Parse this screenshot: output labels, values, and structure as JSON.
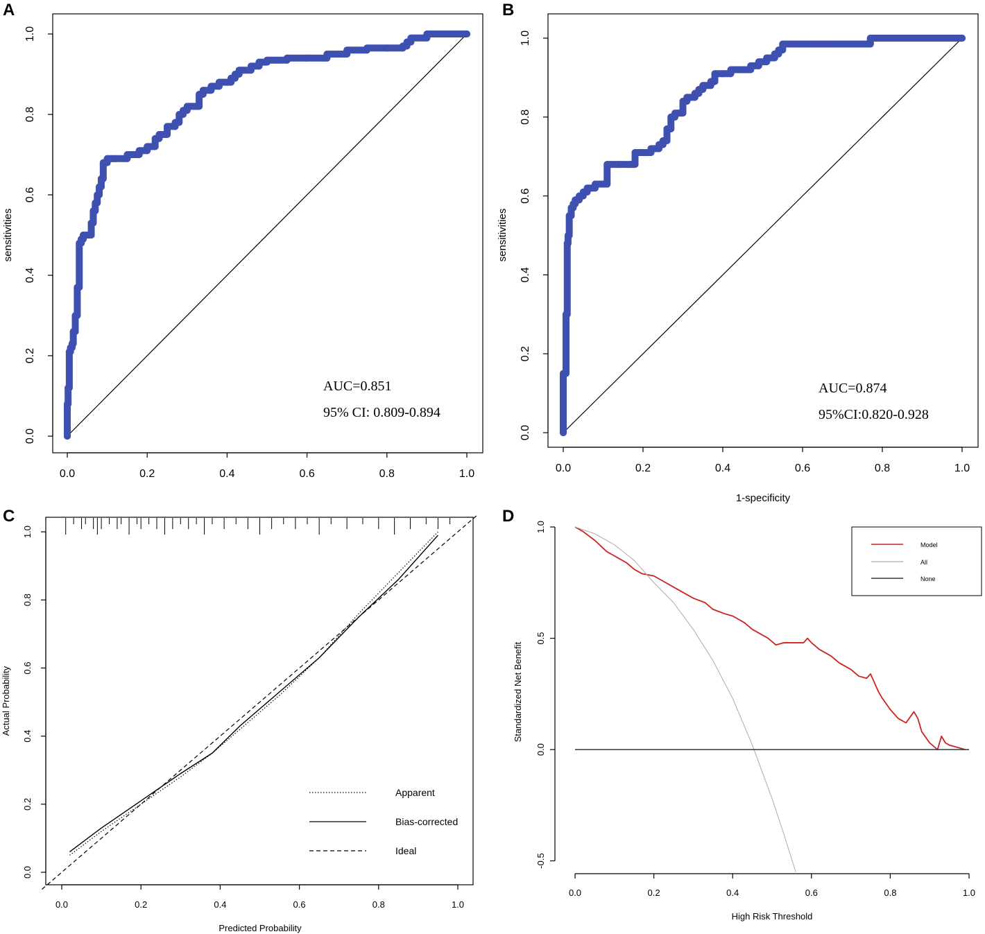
{
  "colors": {
    "roc": "#3f51b0",
    "model": "#cc2222",
    "all": "#aaaaaa",
    "none": "#333333",
    "ink": "#000000"
  },
  "chart_data": [
    {
      "panel": "A",
      "type": "line",
      "title": "",
      "xlabel": "",
      "ylabel": "sensitivities",
      "xlim": [
        0,
        1
      ],
      "ylim": [
        0,
        1
      ],
      "xticks": [
        "0.0",
        "0.2",
        "0.4",
        "0.6",
        "0.8",
        "1.0"
      ],
      "yticks": [
        "0.0",
        "0.2",
        "0.4",
        "0.6",
        "0.8",
        "1.0"
      ],
      "series": [
        {
          "name": "ROC",
          "color": "#3f51b0",
          "x": [
            0,
            0,
            0.002,
            0.005,
            0.008,
            0.012,
            0.015,
            0.02,
            0.025,
            0.03,
            0.035,
            0.04,
            0.05,
            0.06,
            0.065,
            0.07,
            0.075,
            0.08,
            0.085,
            0.09,
            0.1,
            0.11,
            0.12,
            0.15,
            0.18,
            0.2,
            0.21,
            0.22,
            0.23,
            0.25,
            0.27,
            0.28,
            0.29,
            0.3,
            0.32,
            0.33,
            0.34,
            0.36,
            0.38,
            0.4,
            0.41,
            0.42,
            0.43,
            0.44,
            0.46,
            0.48,
            0.5,
            0.55,
            0.6,
            0.65,
            0.7,
            0.75,
            0.8,
            0.84,
            0.85,
            0.86,
            0.9,
            1.0
          ],
          "y": [
            0,
            0.08,
            0.12,
            0.21,
            0.22,
            0.23,
            0.26,
            0.3,
            0.37,
            0.48,
            0.49,
            0.5,
            0.5,
            0.53,
            0.56,
            0.58,
            0.6,
            0.62,
            0.64,
            0.68,
            0.69,
            0.69,
            0.69,
            0.7,
            0.71,
            0.72,
            0.72,
            0.74,
            0.75,
            0.77,
            0.78,
            0.8,
            0.81,
            0.82,
            0.82,
            0.85,
            0.86,
            0.87,
            0.88,
            0.88,
            0.89,
            0.9,
            0.91,
            0.91,
            0.92,
            0.93,
            0.935,
            0.94,
            0.94,
            0.95,
            0.96,
            0.965,
            0.965,
            0.97,
            0.98,
            0.99,
            1.0,
            1.0
          ]
        },
        {
          "name": "Reference",
          "color": "#000000",
          "x": [
            0,
            1
          ],
          "y": [
            0,
            1
          ]
        }
      ],
      "annotations": [
        "AUC=0.851",
        "95% CI: 0.809-0.894"
      ]
    },
    {
      "panel": "B",
      "type": "line",
      "title": "",
      "xlabel": "1-specificity",
      "ylabel": "sensitivities",
      "xlim": [
        0,
        1
      ],
      "ylim": [
        0,
        1
      ],
      "xticks": [
        "0.0",
        "0.2",
        "0.4",
        "0.6",
        "0.8",
        "1.0"
      ],
      "yticks": [
        "0.0",
        "0.2",
        "0.4",
        "0.6",
        "0.8",
        "1.0"
      ],
      "series": [
        {
          "name": "ROC",
          "color": "#3f51b0",
          "x": [
            0,
            0,
            0.005,
            0.007,
            0.01,
            0.012,
            0.015,
            0.02,
            0.025,
            0.03,
            0.04,
            0.05,
            0.06,
            0.07,
            0.08,
            0.1,
            0.11,
            0.14,
            0.17,
            0.18,
            0.2,
            0.22,
            0.23,
            0.24,
            0.25,
            0.26,
            0.27,
            0.28,
            0.29,
            0.3,
            0.31,
            0.32,
            0.33,
            0.34,
            0.35,
            0.37,
            0.38,
            0.4,
            0.42,
            0.45,
            0.47,
            0.49,
            0.51,
            0.53,
            0.54,
            0.55,
            0.6,
            0.7,
            0.76,
            0.77,
            1.0
          ],
          "y": [
            0,
            0.15,
            0.15,
            0.3,
            0.48,
            0.5,
            0.55,
            0.57,
            0.58,
            0.59,
            0.6,
            0.61,
            0.62,
            0.62,
            0.63,
            0.63,
            0.68,
            0.68,
            0.68,
            0.71,
            0.71,
            0.72,
            0.72,
            0.73,
            0.74,
            0.77,
            0.8,
            0.81,
            0.81,
            0.84,
            0.85,
            0.85,
            0.86,
            0.87,
            0.88,
            0.89,
            0.91,
            0.91,
            0.92,
            0.92,
            0.93,
            0.94,
            0.95,
            0.96,
            0.97,
            0.985,
            0.985,
            0.985,
            0.985,
            1.0,
            1.0
          ]
        },
        {
          "name": "Reference",
          "color": "#000000",
          "x": [
            0,
            1
          ],
          "y": [
            0,
            1
          ]
        }
      ],
      "annotations": [
        "AUC=0.874",
        "95%CI:0.820-0.928"
      ]
    },
    {
      "panel": "C",
      "type": "line",
      "title": "",
      "xlabel": "Predicted Probability",
      "ylabel": "Actual Probability",
      "xlim": [
        0,
        1
      ],
      "ylim": [
        0,
        1
      ],
      "xticks": [
        "0.0",
        "0.2",
        "0.4",
        "0.6",
        "0.8",
        "1.0"
      ],
      "yticks": [
        "0.0",
        "0.2",
        "0.4",
        "0.6",
        "0.8",
        "1.0"
      ],
      "series": [
        {
          "name": "Apparent",
          "style": "dotted",
          "x": [
            0.02,
            0.1,
            0.2,
            0.3,
            0.38,
            0.45,
            0.55,
            0.65,
            0.75,
            0.85,
            0.95
          ],
          "y": [
            0.05,
            0.12,
            0.2,
            0.28,
            0.35,
            0.42,
            0.52,
            0.63,
            0.76,
            0.88,
            1.0
          ]
        },
        {
          "name": "Bias-corrected",
          "style": "solid",
          "x": [
            0.02,
            0.1,
            0.2,
            0.3,
            0.38,
            0.45,
            0.55,
            0.65,
            0.75,
            0.85,
            0.95
          ],
          "y": [
            0.06,
            0.13,
            0.21,
            0.29,
            0.35,
            0.43,
            0.53,
            0.63,
            0.75,
            0.86,
            0.99
          ]
        },
        {
          "name": "Ideal",
          "style": "dashed",
          "x": [
            -0.05,
            1.05
          ],
          "y": [
            -0.05,
            1.05
          ]
        }
      ],
      "rug": [
        0.01,
        0.03,
        0.05,
        0.06,
        0.08,
        0.09,
        0.1,
        0.12,
        0.14,
        0.15,
        0.17,
        0.19,
        0.2,
        0.22,
        0.24,
        0.26,
        0.28,
        0.3,
        0.32,
        0.34,
        0.36,
        0.38,
        0.41,
        0.44,
        0.47,
        0.5,
        0.53,
        0.56,
        0.59,
        0.62,
        0.65,
        0.68,
        0.72,
        0.76,
        0.8,
        0.84,
        0.88,
        0.92,
        0.95,
        0.98
      ],
      "legend": {
        "position": "bottom-right",
        "entries": [
          "Apparent",
          "Bias-corrected",
          "Ideal"
        ]
      }
    },
    {
      "panel": "D",
      "type": "line",
      "title": "",
      "xlabel": "High Risk Threshold",
      "ylabel": "Standardized Net Benefit",
      "xlim": [
        0,
        1
      ],
      "ylim": [
        -0.55,
        1.0
      ],
      "xticks": [
        "0.0",
        "0.2",
        "0.4",
        "0.6",
        "0.8",
        "1.0"
      ],
      "yticks": [
        "-0.5",
        "0.0",
        "0.5",
        "1.0"
      ],
      "series": [
        {
          "name": "Model",
          "color": "#cc2222",
          "x": [
            0,
            0.02,
            0.05,
            0.08,
            0.1,
            0.13,
            0.15,
            0.17,
            0.2,
            0.23,
            0.25,
            0.28,
            0.3,
            0.33,
            0.35,
            0.38,
            0.4,
            0.43,
            0.45,
            0.47,
            0.49,
            0.51,
            0.53,
            0.55,
            0.57,
            0.58,
            0.59,
            0.6,
            0.62,
            0.65,
            0.67,
            0.7,
            0.72,
            0.74,
            0.75,
            0.76,
            0.77,
            0.78,
            0.8,
            0.82,
            0.84,
            0.86,
            0.87,
            0.88,
            0.9,
            0.92,
            0.93,
            0.94,
            0.95,
            0.97,
            0.99
          ],
          "y": [
            1.0,
            0.98,
            0.94,
            0.89,
            0.87,
            0.84,
            0.81,
            0.79,
            0.78,
            0.75,
            0.73,
            0.7,
            0.68,
            0.66,
            0.63,
            0.61,
            0.6,
            0.57,
            0.54,
            0.52,
            0.5,
            0.47,
            0.48,
            0.48,
            0.48,
            0.48,
            0.5,
            0.48,
            0.45,
            0.42,
            0.39,
            0.36,
            0.33,
            0.32,
            0.34,
            0.3,
            0.26,
            0.23,
            0.18,
            0.14,
            0.12,
            0.17,
            0.14,
            0.08,
            0.03,
            0.0,
            0.06,
            0.03,
            0.02,
            0.01,
            0.0
          ]
        },
        {
          "name": "All",
          "color": "#aaaaaa",
          "x": [
            0,
            0.05,
            0.1,
            0.15,
            0.2,
            0.25,
            0.3,
            0.35,
            0.4,
            0.45,
            0.5,
            0.53,
            0.56
          ],
          "y": [
            1.0,
            0.97,
            0.92,
            0.85,
            0.75,
            0.66,
            0.54,
            0.4,
            0.23,
            0.02,
            -0.22,
            -0.38,
            -0.55
          ]
        },
        {
          "name": "None",
          "color": "#333333",
          "x": [
            0,
            1
          ],
          "y": [
            0,
            0
          ]
        }
      ],
      "legend": {
        "position": "top-right",
        "entries": [
          "Model",
          "All",
          "None"
        ]
      }
    }
  ]
}
